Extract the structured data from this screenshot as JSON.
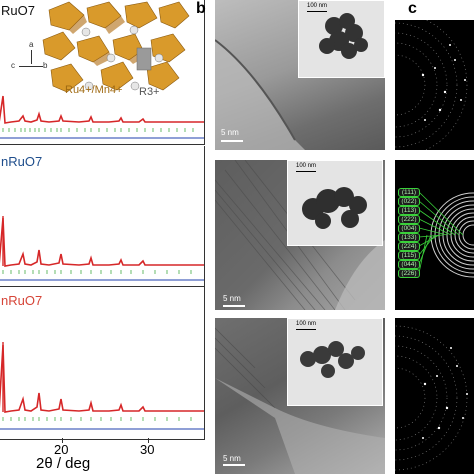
{
  "panel_a": {
    "rows": [
      {
        "title": "RuO7",
        "title_color": "#111111"
      },
      {
        "title": "nRuO7",
        "title_color": "#1f4e8c"
      },
      {
        "title": "nRuO7",
        "title_color": "#d64538"
      }
    ],
    "structure_labels": {
      "ion_b": "Ru4+/Mn4+",
      "ion_a": "R3+"
    },
    "axes_labels": {
      "a": "a",
      "b": "b",
      "c": "c"
    },
    "x_axis": {
      "label": "2θ / deg",
      "ticks": [
        "20",
        "30"
      ]
    },
    "colors": {
      "calc": "#d62728",
      "obs": "#c83b3b",
      "bragg": "#2ca02c",
      "diff": "#1f3fae"
    }
  },
  "panel_b": {
    "letter": "b",
    "images": [
      {
        "scale_main": "5 nm",
        "scale_inset": "100 nm"
      },
      {
        "scale_main": "5 nm",
        "scale_inset": "100 nm"
      },
      {
        "scale_main": "5 nm",
        "scale_inset": "100 nm"
      }
    ]
  },
  "panel_c": {
    "letter": "c",
    "hkl": [
      "(111)",
      "(022)",
      "(113)",
      "(222)",
      "(004)",
      "(133)",
      "(224)",
      "(115)",
      "(044)",
      "(226)"
    ]
  }
}
